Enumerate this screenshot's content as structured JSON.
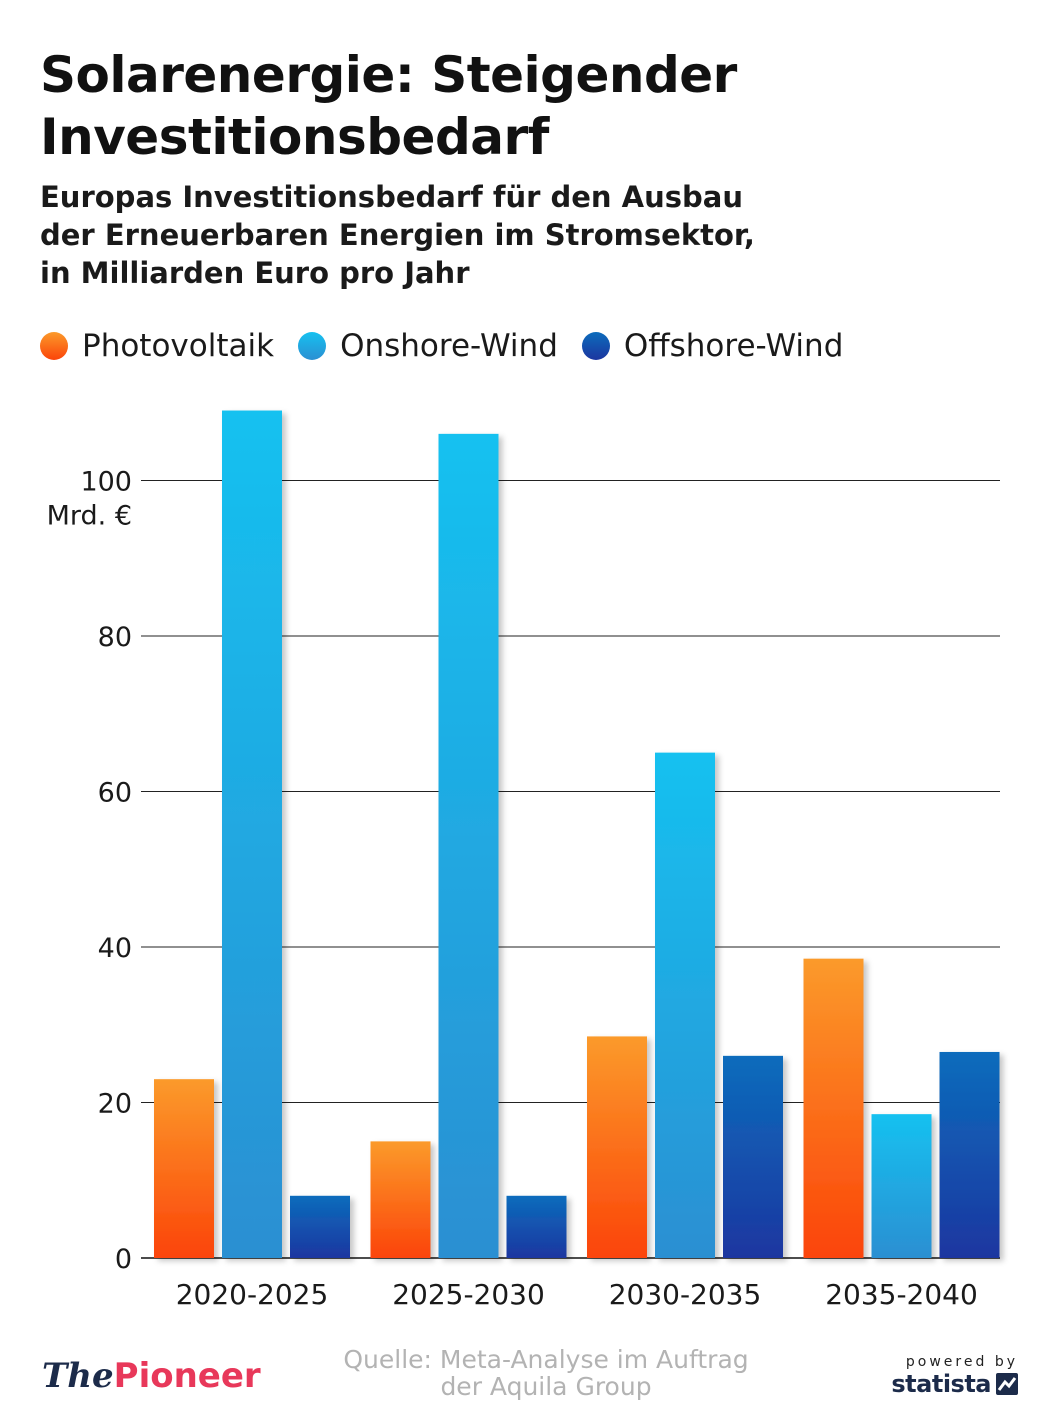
{
  "title": "Solarenergie: Steigender Investitionsbedarf",
  "subtitle_lines": [
    "Europas Investitionsbedarf für den Ausbau",
    "der Erneuerbaren Energien im Stromsektor,",
    "in Milliarden Euro pro Jahr"
  ],
  "legend": [
    {
      "label": "Photovoltaik",
      "color": "#f7902a"
    },
    {
      "label": "Onshore-Wind",
      "color": "#2aa6e4"
    },
    {
      "label": "Offshore-Wind",
      "color": "#1d4fb0"
    }
  ],
  "chart_data": {
    "type": "bar",
    "categories": [
      "2020-2025",
      "2025-2030",
      "2030-2035",
      "2035-2040"
    ],
    "series": [
      {
        "name": "Photovoltaik",
        "values": [
          23,
          15,
          28.5,
          38.5
        ],
        "color_top": "#fb9a2b",
        "color_bottom": "#fb4409"
      },
      {
        "name": "Onshore-Wind",
        "values": [
          109,
          106,
          65,
          18.5
        ],
        "color_top": "#16c1f0",
        "color_bottom": "#2b8fd2"
      },
      {
        "name": "Offshore-Wind",
        "values": [
          8,
          8,
          26,
          26.5
        ],
        "color_top": "#0c6cbc",
        "color_bottom": "#1c36a0"
      }
    ],
    "ylim": [
      0,
      110
    ],
    "yticks": [
      0,
      20,
      40,
      60,
      80,
      100
    ],
    "y_unit_label": "Mrd. €",
    "grid": true
  },
  "footer": {
    "logo_the": "The",
    "logo_pioneer": "Pioneer",
    "source_lines": [
      "Quelle: Meta-Analyse im Auftrag",
      "der Aquila Group"
    ],
    "powered_by": "powered by",
    "statista": "statista"
  }
}
